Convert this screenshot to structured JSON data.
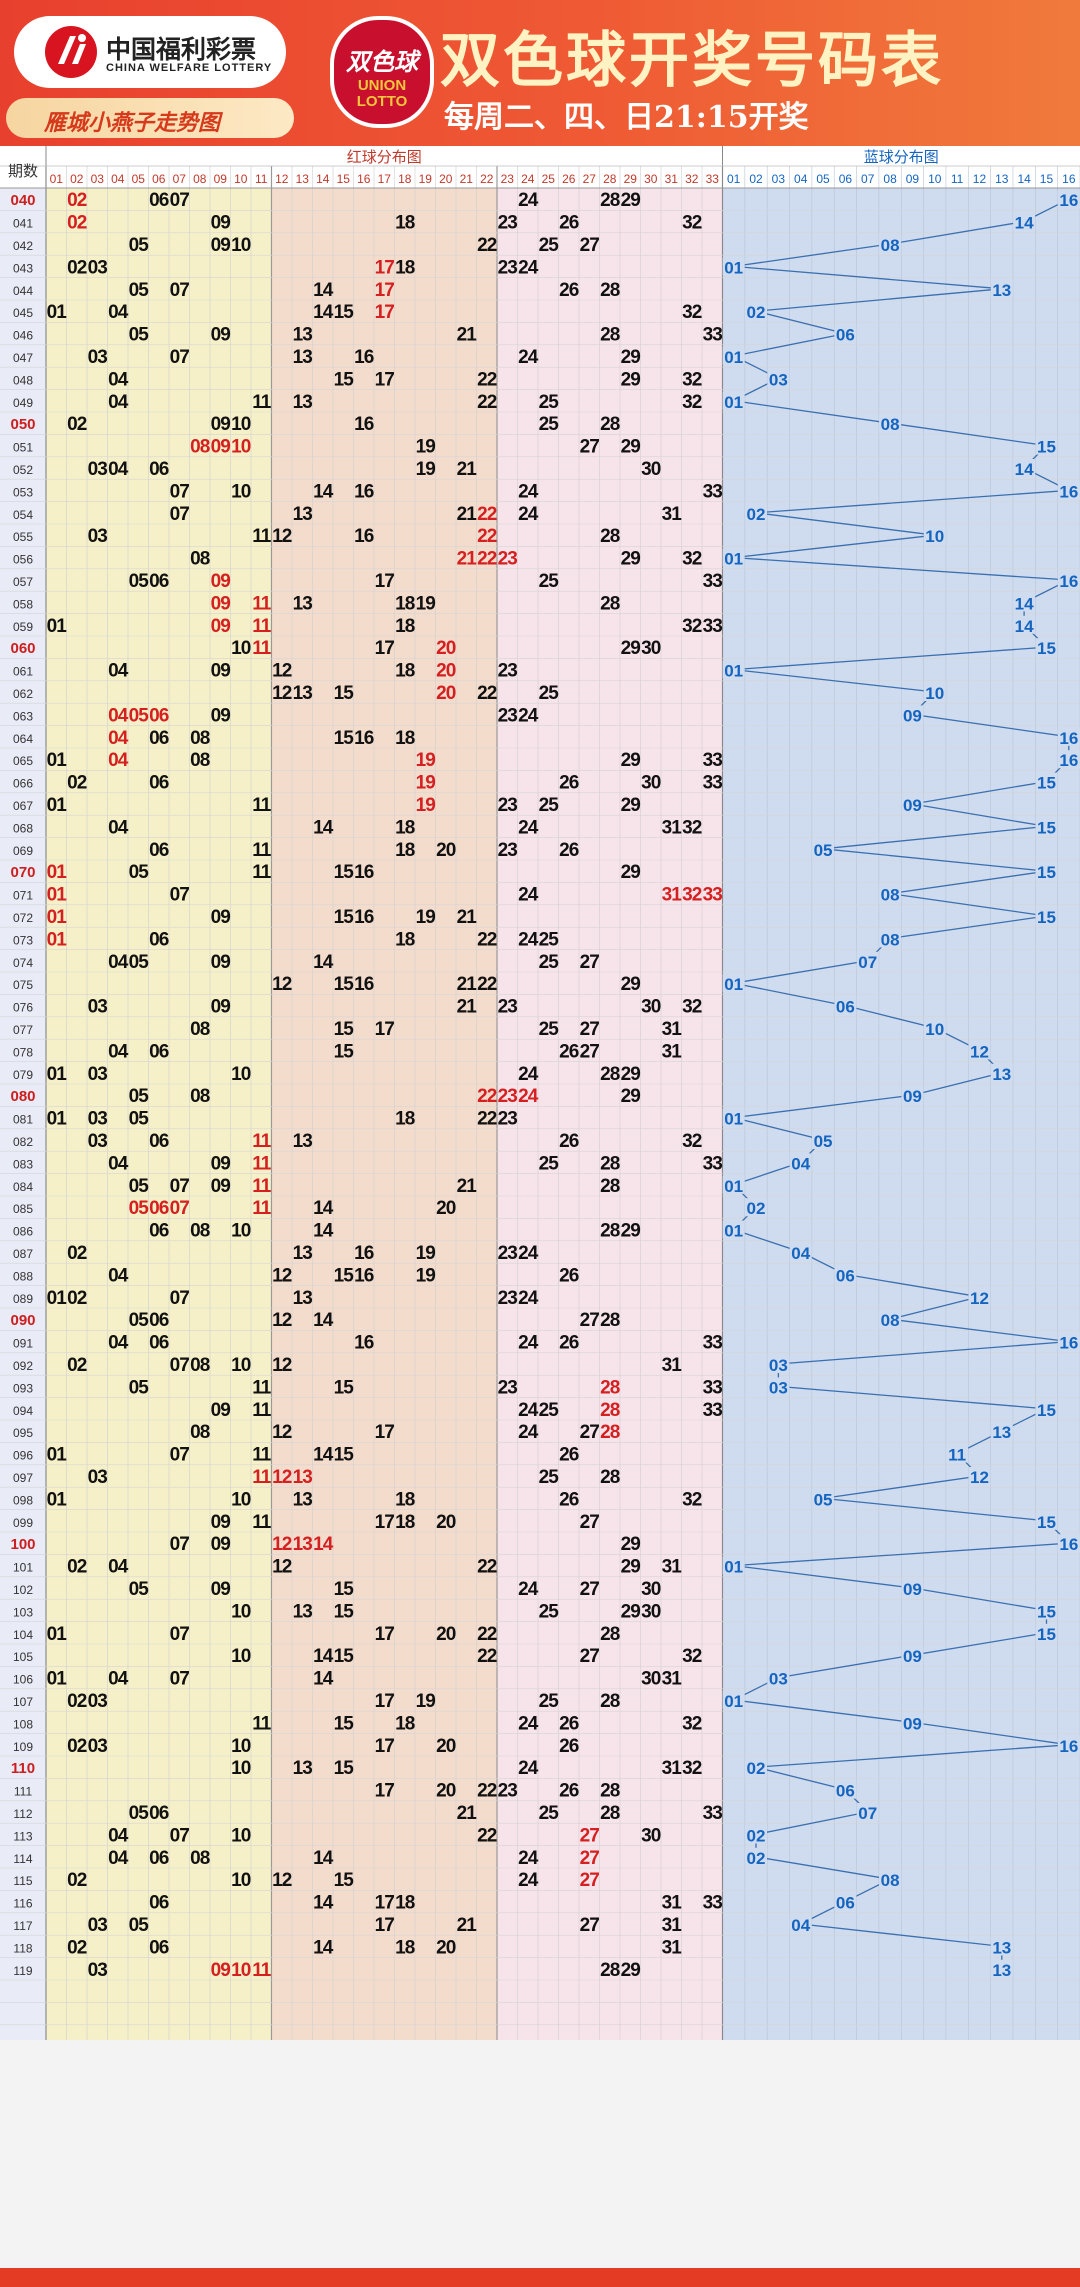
{
  "header": {
    "logo_cn": "中国福利彩票",
    "logo_en": "CHINA WELFARE LOTTERY",
    "sub_title": "雁城小燕子走势图",
    "emblem_top": "双色球",
    "emblem_bottom": "UNION LOTTO",
    "title": "双色球开奖号码表",
    "schedule": "每周二、四、日21:15开奖"
  },
  "table": {
    "period_header": "期数",
    "red_header": "红球分布图",
    "blue_header": "蓝球分布图",
    "colors": {
      "red_num": "#d42020",
      "black_num": "#111111",
      "blue_num": "#1565c0",
      "period_highlight": "#cc1f1f"
    },
    "rows": [
      [
        "040",
        [
          2,
          6,
          7,
          24,
          28,
          29
        ],
        16
      ],
      [
        "041",
        [
          2,
          9,
          18,
          23,
          26,
          32
        ],
        14
      ],
      [
        "042",
        [
          5,
          9,
          10,
          22,
          25,
          27
        ],
        8
      ],
      [
        "043",
        [
          2,
          3,
          17,
          18,
          23,
          24
        ],
        1
      ],
      [
        "044",
        [
          5,
          7,
          14,
          17,
          26,
          28
        ],
        13
      ],
      [
        "045",
        [
          1,
          4,
          14,
          15,
          17,
          32
        ],
        2
      ],
      [
        "046",
        [
          5,
          9,
          13,
          21,
          28,
          33
        ],
        6
      ],
      [
        "047",
        [
          3,
          7,
          13,
          16,
          24,
          29
        ],
        1
      ],
      [
        "048",
        [
          4,
          15,
          17,
          22,
          29,
          32
        ],
        3
      ],
      [
        "049",
        [
          4,
          11,
          13,
          22,
          25,
          32
        ],
        1
      ],
      [
        "050",
        [
          2,
          9,
          10,
          16,
          25,
          28
        ],
        8
      ],
      [
        "051",
        [
          8,
          9,
          10,
          19,
          27,
          29
        ],
        15
      ],
      [
        "052",
        [
          3,
          4,
          6,
          19,
          21,
          30
        ],
        14
      ],
      [
        "053",
        [
          7,
          10,
          14,
          16,
          24,
          33
        ],
        16
      ],
      [
        "054",
        [
          7,
          13,
          21,
          22,
          24,
          31
        ],
        2
      ],
      [
        "055",
        [
          3,
          11,
          12,
          16,
          22,
          28
        ],
        10
      ],
      [
        "056",
        [
          8,
          21,
          22,
          23,
          29,
          32
        ],
        1
      ],
      [
        "057",
        [
          5,
          6,
          9,
          17,
          25,
          33
        ],
        16
      ],
      [
        "058",
        [
          9,
          11,
          13,
          18,
          19,
          28
        ],
        14
      ],
      [
        "059",
        [
          1,
          9,
          11,
          18,
          32,
          33
        ],
        14
      ],
      [
        "060",
        [
          10,
          11,
          17,
          20,
          29,
          30
        ],
        15
      ],
      [
        "061",
        [
          4,
          9,
          12,
          18,
          20,
          23
        ],
        1
      ],
      [
        "062",
        [
          12,
          13,
          15,
          20,
          22,
          25
        ],
        10
      ],
      [
        "063",
        [
          4,
          5,
          6,
          9,
          23,
          24
        ],
        9
      ],
      [
        "064",
        [
          4,
          6,
          8,
          15,
          16,
          18
        ],
        16
      ],
      [
        "065",
        [
          1,
          4,
          8,
          19,
          29,
          33
        ],
        16
      ],
      [
        "066",
        [
          2,
          6,
          19,
          26,
          30,
          33
        ],
        15
      ],
      [
        "067",
        [
          1,
          11,
          19,
          23,
          25,
          29
        ],
        9
      ],
      [
        "068",
        [
          4,
          14,
          18,
          24,
          31,
          32
        ],
        15
      ],
      [
        "069",
        [
          6,
          11,
          18,
          20,
          23,
          26
        ],
        5
      ],
      [
        "070",
        [
          1,
          5,
          11,
          15,
          16,
          29
        ],
        15
      ],
      [
        "071",
        [
          1,
          7,
          24,
          31,
          32,
          33
        ],
        8
      ],
      [
        "072",
        [
          1,
          9,
          15,
          16,
          19,
          21
        ],
        15
      ],
      [
        "073",
        [
          1,
          6,
          18,
          22,
          24,
          25
        ],
        8
      ],
      [
        "074",
        [
          4,
          5,
          9,
          14,
          25,
          27
        ],
        7
      ],
      [
        "075",
        [
          12,
          15,
          16,
          21,
          22,
          29
        ],
        1
      ],
      [
        "076",
        [
          3,
          9,
          21,
          23,
          30,
          32
        ],
        6
      ],
      [
        "077",
        [
          8,
          15,
          17,
          25,
          27,
          31
        ],
        10
      ],
      [
        "078",
        [
          4,
          6,
          15,
          26,
          27,
          31
        ],
        12
      ],
      [
        "079",
        [
          1,
          3,
          10,
          24,
          28,
          29
        ],
        13
      ],
      [
        "080",
        [
          5,
          8,
          22,
          23,
          24,
          29
        ],
        9
      ],
      [
        "081",
        [
          1,
          3,
          5,
          18,
          22,
          23
        ],
        1
      ],
      [
        "082",
        [
          3,
          6,
          11,
          13,
          26,
          32
        ],
        5
      ],
      [
        "083",
        [
          4,
          9,
          11,
          25,
          28,
          33
        ],
        4
      ],
      [
        "084",
        [
          5,
          7,
          9,
          11,
          21,
          28
        ],
        1
      ],
      [
        "085",
        [
          5,
          6,
          7,
          11,
          14,
          20
        ],
        2
      ],
      [
        "086",
        [
          6,
          8,
          10,
          14,
          28,
          29
        ],
        1
      ],
      [
        "087",
        [
          2,
          13,
          16,
          19,
          23,
          24
        ],
        4
      ],
      [
        "088",
        [
          4,
          12,
          15,
          16,
          19,
          26
        ],
        6
      ],
      [
        "089",
        [
          1,
          2,
          7,
          13,
          23,
          24
        ],
        12
      ],
      [
        "090",
        [
          5,
          6,
          12,
          14,
          27,
          28
        ],
        8
      ],
      [
        "091",
        [
          4,
          6,
          16,
          24,
          26,
          33
        ],
        16
      ],
      [
        "092",
        [
          2,
          7,
          8,
          10,
          12,
          31
        ],
        3
      ],
      [
        "093",
        [
          5,
          11,
          15,
          23,
          28,
          33
        ],
        3
      ],
      [
        "094",
        [
          9,
          11,
          24,
          25,
          28,
          33
        ],
        15
      ],
      [
        "095",
        [
          8,
          12,
          17,
          24,
          27,
          28
        ],
        13
      ],
      [
        "096",
        [
          1,
          7,
          11,
          14,
          15,
          26
        ],
        11
      ],
      [
        "097",
        [
          3,
          11,
          12,
          13,
          25,
          28
        ],
        12
      ],
      [
        "098",
        [
          1,
          10,
          13,
          18,
          26,
          32
        ],
        5
      ],
      [
        "099",
        [
          9,
          11,
          17,
          18,
          20,
          27
        ],
        15
      ],
      [
        "100",
        [
          7,
          9,
          12,
          13,
          14,
          29
        ],
        16
      ],
      [
        "101",
        [
          2,
          4,
          12,
          22,
          29,
          31
        ],
        1
      ],
      [
        "102",
        [
          5,
          9,
          15,
          24,
          27,
          30
        ],
        9
      ],
      [
        "103",
        [
          10,
          13,
          15,
          25,
          29,
          30
        ],
        15
      ],
      [
        "104",
        [
          1,
          7,
          17,
          20,
          22,
          28
        ],
        15
      ],
      [
        "105",
        [
          10,
          14,
          15,
          22,
          27,
          32
        ],
        9
      ],
      [
        "106",
        [
          1,
          4,
          7,
          14,
          30,
          31
        ],
        3
      ],
      [
        "107",
        [
          2,
          3,
          17,
          19,
          25,
          28
        ],
        1
      ],
      [
        "108",
        [
          11,
          15,
          18,
          24,
          26,
          32
        ],
        9
      ],
      [
        "109",
        [
          2,
          3,
          10,
          17,
          20,
          26
        ],
        16
      ],
      [
        "110",
        [
          10,
          13,
          15,
          24,
          31,
          32
        ],
        2
      ],
      [
        "111",
        [
          17,
          20,
          22,
          23,
          26,
          28
        ],
        6
      ],
      [
        "112",
        [
          5,
          6,
          21,
          25,
          28,
          33
        ],
        7
      ],
      [
        "113",
        [
          4,
          7,
          10,
          22,
          27,
          30
        ],
        2
      ],
      [
        "114",
        [
          4,
          6,
          8,
          14,
          24,
          27
        ],
        2
      ],
      [
        "115",
        [
          2,
          10,
          12,
          15,
          24,
          27
        ],
        8
      ],
      [
        "116",
        [
          6,
          14,
          17,
          18,
          31,
          33
        ],
        6
      ],
      [
        "117",
        [
          3,
          5,
          17,
          21,
          27,
          31
        ],
        4
      ],
      [
        "118",
        [
          2,
          6,
          14,
          18,
          20,
          31
        ],
        13
      ],
      [
        "119",
        [
          3,
          9,
          10,
          11,
          28,
          29
        ],
        13
      ]
    ]
  },
  "red_highlights": [
    [
      "040",
      2
    ],
    [
      "041",
      2
    ],
    [
      "043",
      17
    ],
    [
      "044",
      17
    ],
    [
      "045",
      17
    ],
    [
      "051",
      8
    ],
    [
      "051",
      9
    ],
    [
      "051",
      10
    ],
    [
      "054",
      22
    ],
    [
      "055",
      22
    ],
    [
      "056",
      21
    ],
    [
      "056",
      22
    ],
    [
      "056",
      23
    ],
    [
      "057",
      9
    ],
    [
      "058",
      9
    ],
    [
      "058",
      11
    ],
    [
      "059",
      9
    ],
    [
      "059",
      11
    ],
    [
      "060",
      11
    ],
    [
      "060",
      20
    ],
    [
      "061",
      20
    ],
    [
      "062",
      20
    ],
    [
      "063",
      4
    ],
    [
      "063",
      5
    ],
    [
      "063",
      6
    ],
    [
      "064",
      4
    ],
    [
      "065",
      4
    ],
    [
      "065",
      19
    ],
    [
      "066",
      19
    ],
    [
      "067",
      19
    ],
    [
      "070",
      1
    ],
    [
      "071",
      1
    ],
    [
      "072",
      1
    ],
    [
      "073",
      1
    ],
    [
      "071",
      31
    ],
    [
      "071",
      32
    ],
    [
      "071",
      33
    ],
    [
      "080",
      22
    ],
    [
      "080",
      23
    ],
    [
      "080",
      24
    ],
    [
      "082",
      11
    ],
    [
      "083",
      11
    ],
    [
      "084",
      11
    ],
    [
      "085",
      11
    ],
    [
      "085",
      5
    ],
    [
      "085",
      6
    ],
    [
      "085",
      7
    ],
    [
      "093",
      28
    ],
    [
      "094",
      28
    ],
    [
      "095",
      28
    ],
    [
      "097",
      11
    ],
    [
      "097",
      12
    ],
    [
      "097",
      13
    ],
    [
      "100",
      12
    ],
    [
      "100",
      13
    ],
    [
      "100",
      14
    ],
    [
      "113",
      27
    ],
    [
      "114",
      27
    ],
    [
      "115",
      27
    ],
    [
      "119",
      9
    ],
    [
      "119",
      10
    ],
    [
      "119",
      11
    ]
  ],
  "period_highlights": [
    "040",
    "050",
    "060",
    "070",
    "080",
    "090",
    "100",
    "110"
  ]
}
